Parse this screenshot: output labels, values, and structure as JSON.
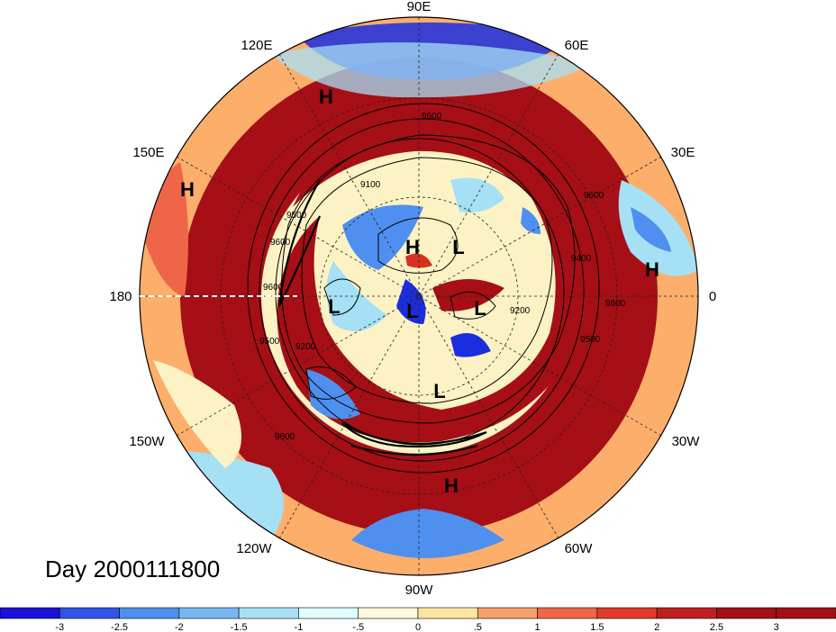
{
  "map": {
    "projection": "north-polar-stereographic",
    "field_colors": {
      "dark_red": "#a50f15",
      "red": "#d7301f",
      "orange": "#ef6548",
      "light_orange": "#fdae6b",
      "cream": "#fdf2c4",
      "pale_cyan": "#e0ffff",
      "light_blue": "#a5e0f5",
      "blue": "#4f8ff0",
      "dark_blue": "#1a2ee0"
    },
    "longitude_labels": [
      {
        "id": "lon-90e",
        "text": "90E"
      },
      {
        "id": "lon-60e",
        "text": "60E"
      },
      {
        "id": "lon-30e",
        "text": "30E"
      },
      {
        "id": "lon-0",
        "text": "0"
      },
      {
        "id": "lon-30w",
        "text": "30W"
      },
      {
        "id": "lon-60w",
        "text": "60W"
      },
      {
        "id": "lon-90w",
        "text": "90W"
      },
      {
        "id": "lon-120w",
        "text": "120W"
      },
      {
        "id": "lon-150w",
        "text": "150W"
      },
      {
        "id": "lon-180",
        "text": "180"
      },
      {
        "id": "lon-150e",
        "text": "150E"
      },
      {
        "id": "lon-120e",
        "text": "120E"
      }
    ],
    "pressure_markers": [
      {
        "id": "high-1",
        "text": "H"
      },
      {
        "id": "high-2",
        "text": "H"
      },
      {
        "id": "high-3",
        "text": "H"
      },
      {
        "id": "high-4",
        "text": "H"
      },
      {
        "id": "high-5",
        "text": "H"
      },
      {
        "id": "low-1",
        "text": "L"
      },
      {
        "id": "low-2",
        "text": "L"
      },
      {
        "id": "low-3",
        "text": "L"
      },
      {
        "id": "low-4",
        "text": "L"
      },
      {
        "id": "low-5",
        "text": "L"
      }
    ],
    "contour_labels": [
      "9600",
      "9100",
      "9600",
      "9500",
      "9600",
      "9500",
      "9200",
      "9600",
      "9400",
      "9200",
      "9600",
      "9500",
      "9600"
    ]
  },
  "timestamp_label": "Day 2000111800",
  "colorbar": {
    "colors": [
      "#1a10d8",
      "#2f55e6",
      "#4f8ff0",
      "#78b8f2",
      "#a5e0f5",
      "#e0ffff",
      "#fff8dc",
      "#fde5a0",
      "#f6a06c",
      "#ef6548",
      "#e23a2c",
      "#c01f1f",
      "#a50f15"
    ],
    "tick_labels": [
      "-3",
      "-2.5",
      "-2",
      "-1.5",
      "-1",
      "-.5",
      "0",
      ".5",
      "1",
      "1.5",
      "2",
      "2.5",
      "3"
    ]
  }
}
